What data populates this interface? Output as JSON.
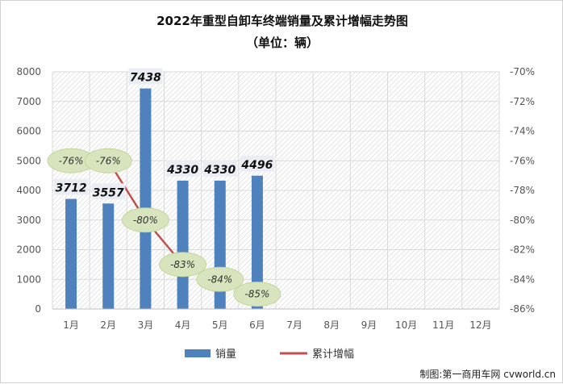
{
  "chart_data": {
    "type": "bar",
    "title": "2022年重型自卸车终端销量及累计增幅走势图",
    "subtitle": "（单位：辆）",
    "categories": [
      "1月",
      "2月",
      "3月",
      "4月",
      "5月",
      "6月",
      "7月",
      "8月",
      "9月",
      "10月",
      "11月",
      "12月"
    ],
    "series": [
      {
        "name": "销量",
        "type": "bar",
        "axis": "left",
        "color": "#4f81bd",
        "values": [
          3712,
          3557,
          7438,
          4330,
          4330,
          4496,
          null,
          null,
          null,
          null,
          null,
          null
        ],
        "labels": [
          "3712",
          "3557",
          "7438",
          "4330",
          "4330",
          "4496"
        ]
      },
      {
        "name": "累计增幅",
        "type": "line",
        "axis": "right",
        "color": "#c0504d",
        "values": [
          -0.76,
          -0.76,
          -0.8,
          -0.83,
          -0.84,
          -0.85,
          null,
          null,
          null,
          null,
          null,
          null
        ],
        "labels": [
          "-76%",
          "-76%",
          "-80%",
          "-83%",
          "-84%",
          "-85%"
        ]
      }
    ],
    "y_left": {
      "min": 0,
      "max": 8000,
      "ticks": [
        "0",
        "1000",
        "2000",
        "3000",
        "4000",
        "5000",
        "6000",
        "7000",
        "8000"
      ]
    },
    "y_right": {
      "min": -0.86,
      "max": -0.7,
      "ticks": [
        "-86%",
        "-84%",
        "-82%",
        "-80%",
        "-78%",
        "-76%",
        "-74%",
        "-72%",
        "-70%"
      ]
    },
    "legend": {
      "position": "bottom",
      "items": [
        "销量",
        "累计增幅"
      ]
    },
    "grid": true,
    "source": "制图:第一商用车网 cvworld.cn"
  }
}
